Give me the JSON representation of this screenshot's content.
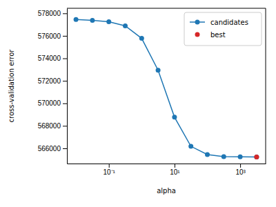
{
  "chart_data": {
    "type": "line",
    "x_label": "alpha",
    "y_label": "cross-validation error",
    "x": [
      0.01,
      0.0316,
      0.1,
      0.316,
      1,
      3.16,
      10,
      31.6,
      100,
      316,
      1000,
      3162
    ],
    "series": [
      {
        "name": "candidates",
        "color": "#1f77b4",
        "marker": "circle",
        "line_style": "solid",
        "values": [
          577450,
          577380,
          577260,
          576890,
          575780,
          572950,
          568770,
          566180,
          565450,
          565260,
          565250,
          565240
        ]
      },
      {
        "name": "best",
        "color": "#d62728",
        "marker": "circle",
        "line_style": "none",
        "values": [
          null,
          null,
          null,
          null,
          null,
          null,
          null,
          null,
          null,
          null,
          null,
          565240
        ]
      }
    ],
    "xlim": [
      0.0053,
      5960
    ],
    "ylim": [
      564650,
      578450
    ],
    "xticks": [
      {
        "value": 0.1,
        "label": "10⁻¹"
      },
      {
        "value": 10,
        "label": "10¹"
      },
      {
        "value": 1000,
        "label": "10³"
      }
    ],
    "yticks": [
      566000,
      568000,
      570000,
      572000,
      574000,
      576000,
      578000
    ],
    "log": "x",
    "grid": false,
    "legend": "upper right"
  }
}
